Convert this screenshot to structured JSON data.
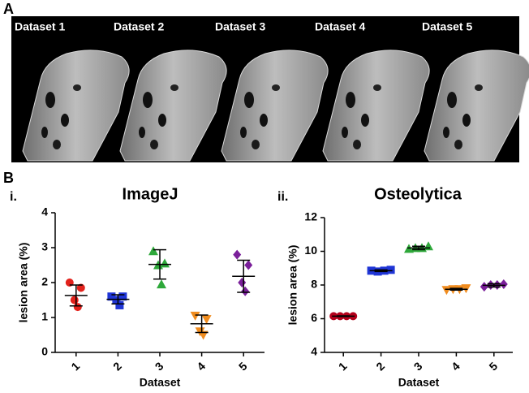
{
  "panel_a": {
    "label": "A",
    "images": [
      "Dataset 1",
      "Dataset 2",
      "Dataset 3",
      "Dataset 4",
      "Dataset 5"
    ]
  },
  "panel_b": {
    "label": "B"
  },
  "chart_data": [
    {
      "type": "dot",
      "panel": "i.",
      "title": "ImageJ",
      "y_label": "lesion area (%)",
      "x_label": "Dataset",
      "categories": [
        "1",
        "2",
        "3",
        "4",
        "5"
      ],
      "groups": [
        {
          "color": "#e3221c",
          "marker": "circle",
          "values": [
            2.0,
            1.85,
            1.5,
            1.3
          ],
          "mean": 1.63,
          "sd": 0.3
        },
        {
          "color": "#1f35d6",
          "marker": "square",
          "values": [
            1.6,
            1.6,
            1.5,
            1.35
          ],
          "mean": 1.52,
          "sd": 0.13
        },
        {
          "color": "#2ea83a",
          "marker": "triangle",
          "values": [
            2.9,
            2.55,
            2.5,
            1.95
          ],
          "mean": 2.52,
          "sd": 0.42
        },
        {
          "color": "#f08c1e",
          "marker": "triangle-down",
          "values": [
            1.05,
            0.95,
            0.6,
            0.5
          ],
          "mean": 0.82,
          "sd": 0.25
        },
        {
          "color": "#7a1f9a",
          "marker": "diamond",
          "values": [
            2.8,
            2.5,
            2.0,
            1.75
          ],
          "mean": 2.18,
          "sd": 0.46
        }
      ],
      "ylim": [
        0,
        4
      ],
      "yticks": [
        0,
        1,
        2,
        3,
        4
      ]
    },
    {
      "type": "dot",
      "panel": "ii.",
      "title": "Osteolytica",
      "y_label": "lesion area (%)",
      "x_label": "Dataset",
      "categories": [
        "1",
        "2",
        "3",
        "4",
        "5"
      ],
      "groups": [
        {
          "color": "#b3001b",
          "marker": "circle",
          "values": [
            6.15,
            6.15,
            6.15,
            6.15
          ],
          "mean": 6.15,
          "sd": 0.02
        },
        {
          "color": "#1f35d6",
          "marker": "square",
          "values": [
            8.85,
            8.8,
            8.85,
            8.9
          ],
          "mean": 8.85,
          "sd": 0.05
        },
        {
          "color": "#2ea83a",
          "marker": "triangle",
          "values": [
            10.15,
            10.2,
            10.2,
            10.3
          ],
          "mean": 10.2,
          "sd": 0.1
        },
        {
          "color": "#f08c1e",
          "marker": "triangle-down",
          "values": [
            7.7,
            7.75,
            7.75,
            7.8
          ],
          "mean": 7.75,
          "sd": 0.05
        },
        {
          "color": "#7a1f9a",
          "marker": "diamond",
          "values": [
            7.9,
            8.0,
            8.0,
            8.05
          ],
          "mean": 7.98,
          "sd": 0.1
        }
      ],
      "ylim": [
        4,
        12
      ],
      "yticks": [
        4,
        6,
        8,
        10,
        12
      ]
    }
  ]
}
